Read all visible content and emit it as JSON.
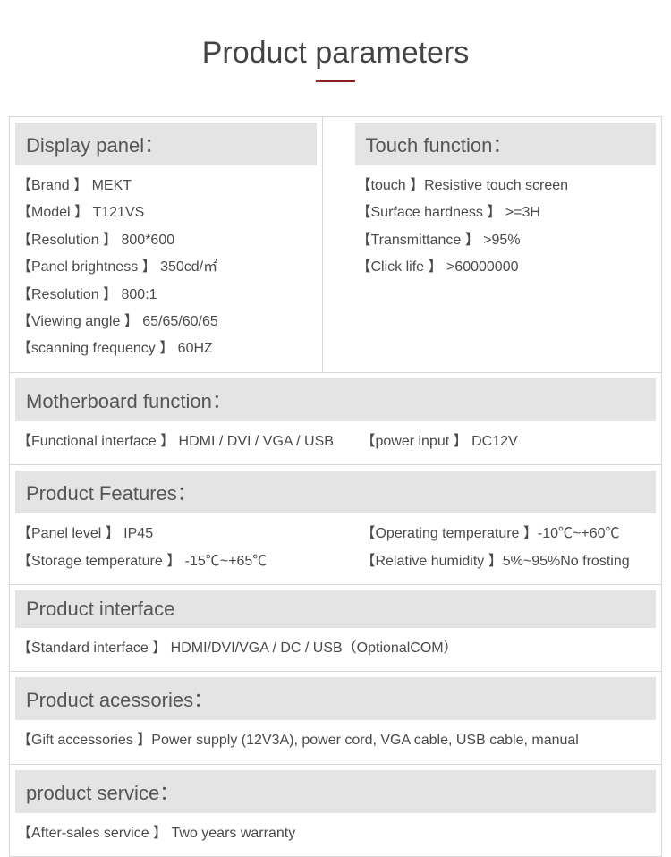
{
  "title": "Product parameters",
  "display_panel": {
    "header": "Display panel：",
    "items": [
      {
        "label": "【Brand 】",
        "value": " MEKT"
      },
      {
        "label": "【Model 】",
        "value": " T121VS"
      },
      {
        "label": "【Resolution 】",
        "value": " 800*600"
      },
      {
        "label": "【Panel brightness 】",
        "value": " 350cd/㎡"
      },
      {
        "label": "【Resolution 】",
        "value": " 800:1"
      },
      {
        "label": "【Viewing angle 】",
        "value": " 65/65/60/65"
      },
      {
        "label": "【scanning frequency 】",
        "value": " 60HZ"
      }
    ]
  },
  "touch_function": {
    "header": "Touch function：",
    "items": [
      {
        "label": "【touch 】",
        "value": "Resistive touch screen"
      },
      {
        "label": "【Surface hardness 】",
        "value": " >=3H"
      },
      {
        "label": "【Transmittance 】",
        "value": " >95%"
      },
      {
        "label": "【Click life 】",
        "value": " >60000000"
      }
    ]
  },
  "motherboard": {
    "header": "Motherboard function：",
    "rows": [
      {
        "left": {
          "label": "【Functional interface 】",
          "value": " HDMI / DVI / VGA / USB"
        },
        "right": {
          "label": "【power input 】",
          "value": " DC12V"
        }
      }
    ]
  },
  "features": {
    "header": "Product Features：",
    "rows": [
      {
        "left": {
          "label": "【Panel level 】",
          "value": " IP45"
        },
        "right": {
          "label": "【Operating temperature 】",
          "value": "-10℃~+60℃"
        }
      },
      {
        "left": {
          "label": "【Storage temperature 】",
          "value": " -15℃~+65℃"
        },
        "right": {
          "label": "【Relative humidity 】",
          "value": "5%~95%No frosting"
        }
      }
    ]
  },
  "interface": {
    "header": "Product interface",
    "items": [
      {
        "label": "【Standard interface 】",
        "value": "  HDMI/DVI/VGA / DC / USB（OptionalCOM）"
      }
    ]
  },
  "accessories": {
    "header": "Product acessories：",
    "items": [
      {
        "label": "【Gift accessories 】",
        "value": "Power supply (12V3A), power cord, VGA cable, USB cable, manual"
      }
    ]
  },
  "service": {
    "header": "product service：",
    "items": [
      {
        "label": "【After-sales service 】",
        "value": " Two years warranty"
      }
    ]
  }
}
